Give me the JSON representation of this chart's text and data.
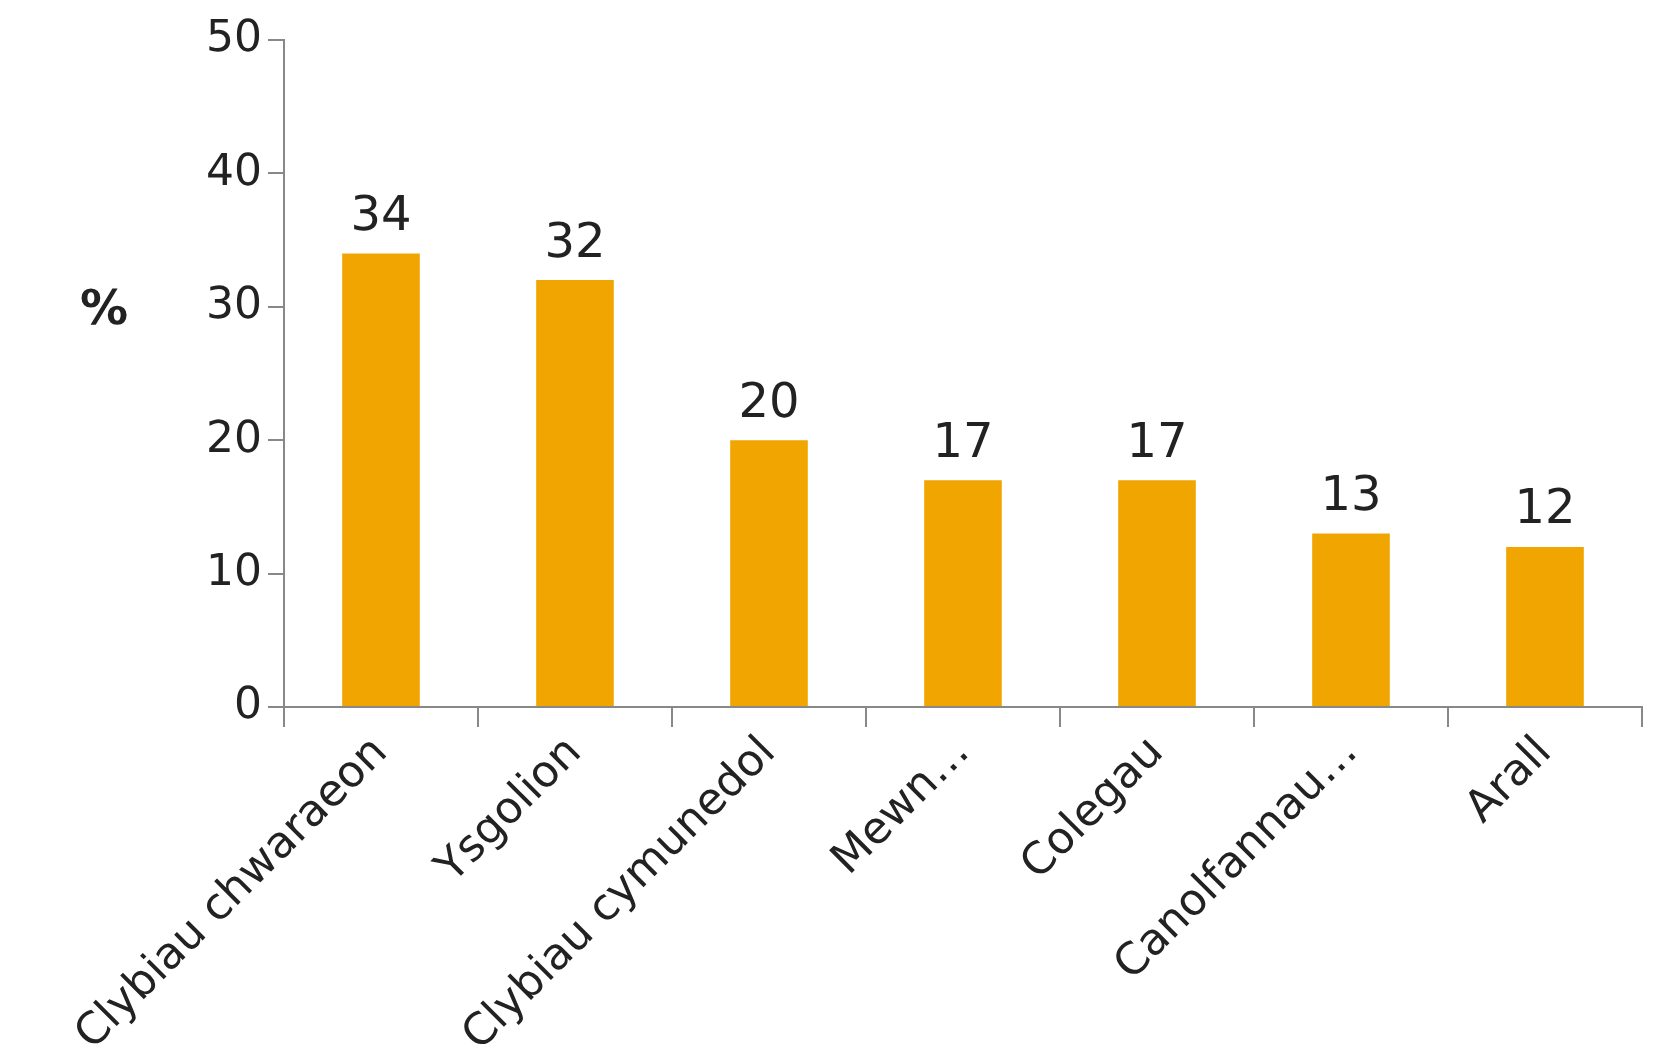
{
  "chart_data": {
    "type": "bar",
    "ylabel": "%",
    "categories": [
      "Clybiau chwaraeon",
      "Ysgolion",
      "Clybiau cymunedol",
      "Mewn…",
      "Colegau",
      "Canolfannau…",
      "Arall"
    ],
    "values": [
      34,
      32,
      20,
      17,
      17,
      13,
      12
    ],
    "color": "#f0a500",
    "ylim": [
      0,
      50
    ],
    "yticks": [
      0,
      10,
      20,
      30,
      40,
      50
    ],
    "grid": false,
    "legend": false,
    "data_labels": true
  }
}
